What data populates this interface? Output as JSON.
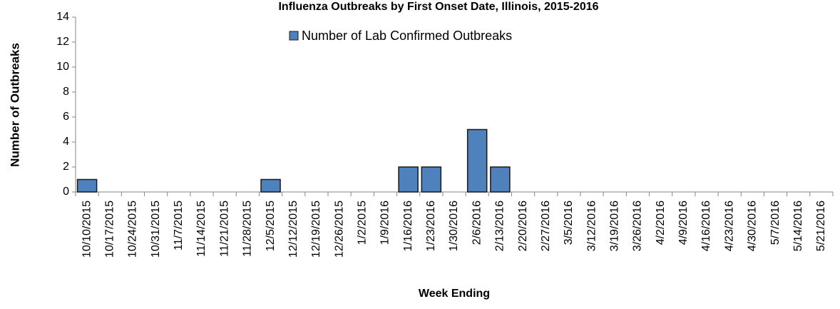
{
  "chart_data": {
    "type": "bar",
    "title": "Influenza Outbreaks by First Onset Date, Illinois, 2015-2016",
    "x_label": "Week Ending",
    "y_label": "Number of Outbreaks",
    "categories": [
      "10/10/2015",
      "10/17/2015",
      "10/24/2015",
      "10/31/2015",
      "11/7/2015",
      "11/14/2015",
      "11/21/2015",
      "11/28/2015",
      "12/5/2015",
      "12/12/2015",
      "12/19/2015",
      "12/26/2015",
      "1/2/2015",
      "1/9/2016",
      "1/16/2016",
      "1/23/2016",
      "1/30/2016",
      "2/6/2016",
      "2/13/2016",
      "2/20/2016",
      "2/27/2016",
      "3/5/2016",
      "3/12/2016",
      "3/19/2016",
      "3/26/2016",
      "4/2/2016",
      "4/9/2016",
      "4/16/2016",
      "4/23/2016",
      "4/30/2016",
      "5/7/2016",
      "5/14/2016",
      "5/21/2016"
    ],
    "series": [
      {
        "name": "Number of Lab Confirmed Outbreaks",
        "color": "#4f81bd",
        "values": [
          1,
          0,
          0,
          0,
          0,
          0,
          0,
          0,
          1,
          0,
          0,
          0,
          0,
          0,
          2,
          2,
          0,
          5,
          2,
          0,
          0,
          0,
          0,
          0,
          0,
          0,
          0,
          0,
          0,
          0,
          0,
          0,
          0
        ]
      }
    ],
    "ylim": [
      0,
      14
    ],
    "yticks": [
      0,
      2,
      4,
      6,
      8,
      10,
      12,
      14
    ],
    "grid": false,
    "legend": "top"
  }
}
